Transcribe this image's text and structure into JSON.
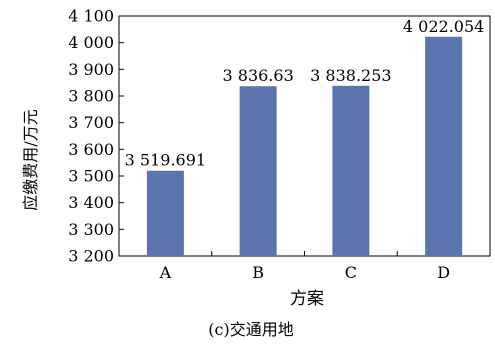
{
  "chart_data": {
    "type": "bar",
    "categories": [
      "A",
      "B",
      "C",
      "D"
    ],
    "values": [
      3519.691,
      3836.63,
      3838.253,
      4022.054
    ],
    "value_labels": [
      "3 519.691",
      "3 836.63",
      "3 838.253",
      "4 022.054"
    ],
    "xlabel": "方案",
    "ylabel": "应缴费用/万元",
    "caption": "(c)交通用地",
    "ylim": [
      3200,
      4100
    ],
    "yticks": [
      3200,
      3300,
      3400,
      3500,
      3600,
      3700,
      3800,
      3900,
      4000,
      4100
    ],
    "ytick_labels": [
      "3 200",
      "3 300",
      "3 400",
      "3 500",
      "3 600",
      "3 700",
      "3 800",
      "3 900",
      "4 000",
      "4 100"
    ],
    "grid": false,
    "legend": "none",
    "bar_color": "#5b74ad",
    "axis_color": "#000000"
  }
}
